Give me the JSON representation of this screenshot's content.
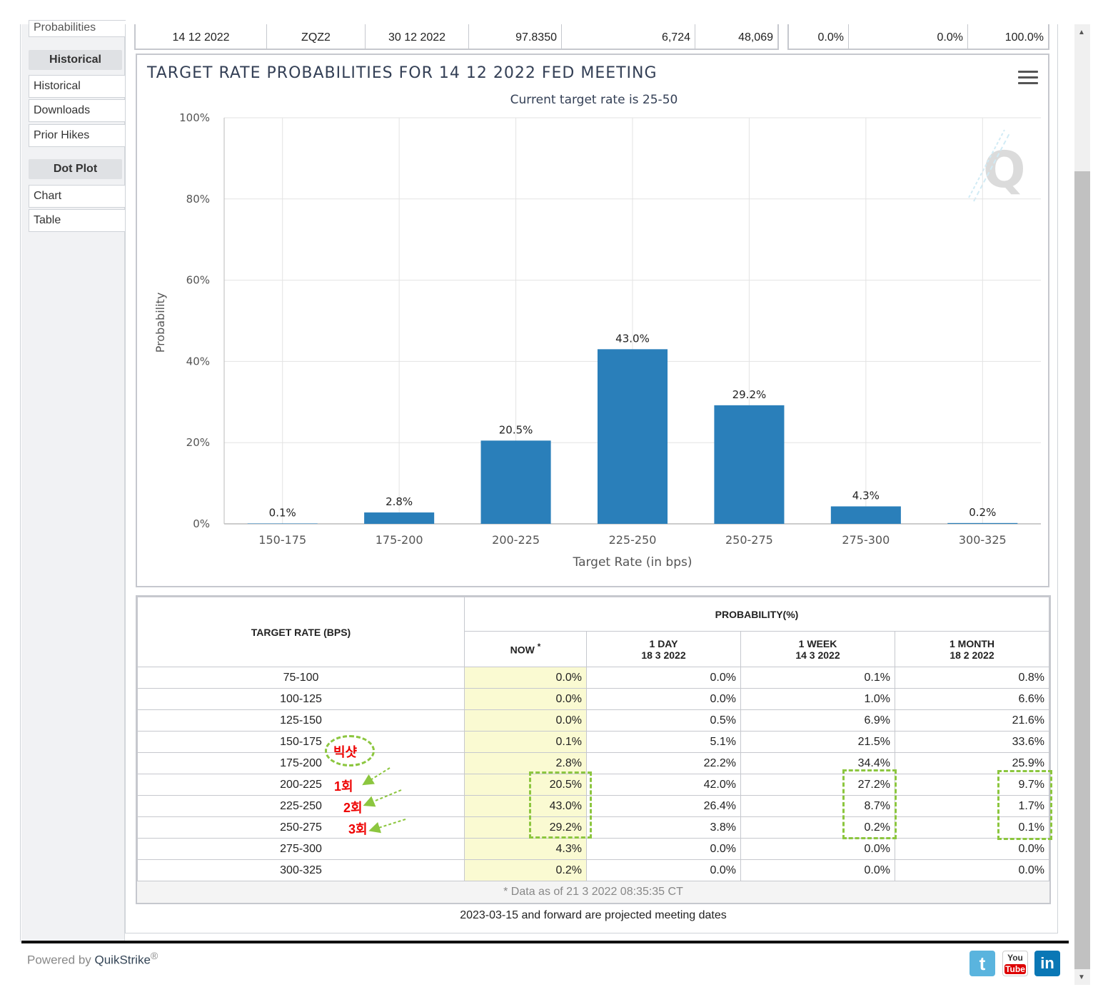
{
  "sidebar": {
    "partial_top": "Probabilities",
    "historical_header": "Historical",
    "historical_items": [
      "Historical",
      "Downloads",
      "Prior Hikes"
    ],
    "dotplot_header": "Dot Plot",
    "dotplot_items": [
      "Chart",
      "Table"
    ]
  },
  "top_row": {
    "meeting_date": "14 12 2022",
    "contract": "ZQZ2",
    "expires": "30 12 2022",
    "mid_price": "97.8350",
    "prior_volume": "6,724",
    "prior_oi": "48,069",
    "ease": "0.0%",
    "no_change": "0.0%",
    "hike": "100.0%"
  },
  "chart_data": {
    "type": "bar",
    "title": "TARGET RATE PROBABILITIES FOR 14 12 2022 FED MEETING",
    "subtitle": "Current target rate is 25-50",
    "xlabel": "Target Rate (in bps)",
    "ylabel": "Probability",
    "categories": [
      "150-175",
      "175-200",
      "200-225",
      "225-250",
      "250-275",
      "275-300",
      "300-325"
    ],
    "values": [
      0.1,
      2.8,
      20.5,
      43.0,
      29.2,
      4.3,
      0.2
    ],
    "labels": [
      "0.1%",
      "2.8%",
      "20.5%",
      "43.0%",
      "29.2%",
      "4.3%",
      "0.2%"
    ],
    "yticks": [
      "0%",
      "20%",
      "40%",
      "60%",
      "80%",
      "100%"
    ],
    "ylim": [
      0,
      100
    ],
    "grid": true,
    "bar_color": "#2a7fba"
  },
  "prob_table": {
    "col_target": "TARGET RATE (BPS)",
    "col_prob": "PROBABILITY(%)",
    "col_now": "NOW",
    "col_now_mark": "*",
    "col_1day": "1 DAY",
    "col_1day_date": "18 3 2022",
    "col_1week": "1 WEEK",
    "col_1week_date": "14 3 2022",
    "col_1month": "1 MONTH",
    "col_1month_date": "18 2 2022",
    "rows": [
      [
        "75-100",
        "0.0%",
        "0.0%",
        "0.1%",
        "0.8%"
      ],
      [
        "100-125",
        "0.0%",
        "0.0%",
        "1.0%",
        "6.6%"
      ],
      [
        "125-150",
        "0.0%",
        "0.5%",
        "6.9%",
        "21.6%"
      ],
      [
        "150-175",
        "0.1%",
        "5.1%",
        "21.5%",
        "33.6%"
      ],
      [
        "175-200",
        "2.8%",
        "22.2%",
        "34.4%",
        "25.9%"
      ],
      [
        "200-225",
        "20.5%",
        "42.0%",
        "27.2%",
        "9.7%"
      ],
      [
        "225-250",
        "43.0%",
        "26.4%",
        "8.7%",
        "1.7%"
      ],
      [
        "250-275",
        "29.2%",
        "3.8%",
        "0.2%",
        "0.1%"
      ],
      [
        "275-300",
        "4.3%",
        "0.0%",
        "0.0%",
        "0.0%"
      ],
      [
        "300-325",
        "0.2%",
        "0.0%",
        "0.0%",
        "0.0%"
      ]
    ],
    "footnote": "* Data as of 21 3 2022 08:35:35 CT"
  },
  "annotations": {
    "bigshot": "빅샷",
    "once": "1회",
    "twice": "2회",
    "thrice": "3회"
  },
  "projected_note": "2023-03-15 and forward are projected meeting dates",
  "footer": {
    "powered_prefix": "Powered by ",
    "brand": "QuikStrike",
    "reg": "®",
    "twitter": "t",
    "youtube_top": "You",
    "youtube_bottom": "Tube",
    "linkedin": "in"
  },
  "colors": {
    "accent_bar": "#2a7fba",
    "now_bg": "#fafad2",
    "highlight_dash": "#8cc63f",
    "annotation_red": "#e00000"
  }
}
